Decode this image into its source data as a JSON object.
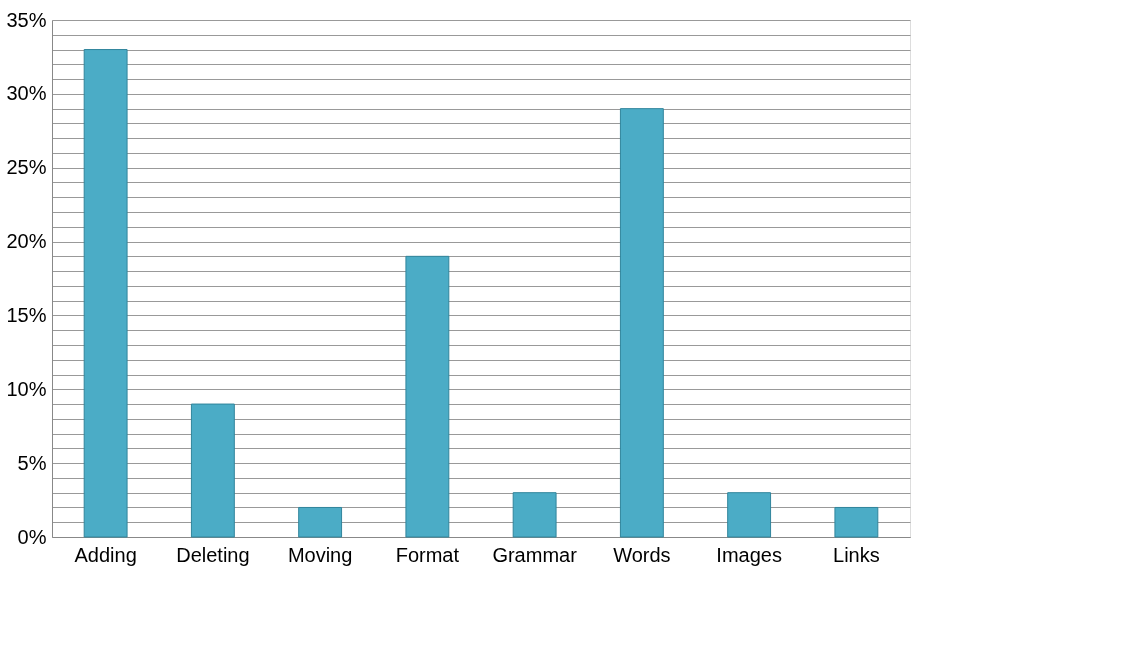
{
  "chart_data": {
    "type": "bar",
    "categories": [
      "Adding",
      "Deleting",
      "Moving",
      "Format",
      "Grammar",
      "Words",
      "Images",
      "Links"
    ],
    "values": [
      33,
      9,
      2,
      19,
      3,
      29,
      3,
      2
    ],
    "color": "#4bacc6",
    "ylim": [
      0,
      35
    ],
    "yticks": [
      {
        "value": 0,
        "label": "0%"
      },
      {
        "value": 1,
        "label": null
      },
      {
        "value": 2,
        "label": null
      },
      {
        "value": 3,
        "label": null
      },
      {
        "value": 4,
        "label": null
      },
      {
        "value": 5,
        "label": "5%"
      },
      {
        "value": 6,
        "label": null
      },
      {
        "value": 7,
        "label": null
      },
      {
        "value": 8,
        "label": null
      },
      {
        "value": 9,
        "label": null
      },
      {
        "value": 10,
        "label": "10%"
      },
      {
        "value": 11,
        "label": null
      },
      {
        "value": 12,
        "label": null
      },
      {
        "value": 13,
        "label": null
      },
      {
        "value": 14,
        "label": null
      },
      {
        "value": 15,
        "label": "15%"
      },
      {
        "value": 16,
        "label": null
      },
      {
        "value": 17,
        "label": null
      },
      {
        "value": 18,
        "label": null
      },
      {
        "value": 19,
        "label": null
      },
      {
        "value": 20,
        "label": "20%"
      },
      {
        "value": 21,
        "label": null
      },
      {
        "value": 22,
        "label": null
      },
      {
        "value": 23,
        "label": null
      },
      {
        "value": 24,
        "label": null
      },
      {
        "value": 25,
        "label": "25%"
      },
      {
        "value": 26,
        "label": null
      },
      {
        "value": 27,
        "label": null
      },
      {
        "value": 28,
        "label": null
      },
      {
        "value": 29,
        "label": null
      },
      {
        "value": 30,
        "label": "30%"
      },
      {
        "value": 31,
        "label": null
      },
      {
        "value": 32,
        "label": null
      },
      {
        "value": 33,
        "label": null
      },
      {
        "value": 34,
        "label": null
      },
      {
        "value": 35,
        "label": "35%"
      }
    ],
    "grid": true
  }
}
